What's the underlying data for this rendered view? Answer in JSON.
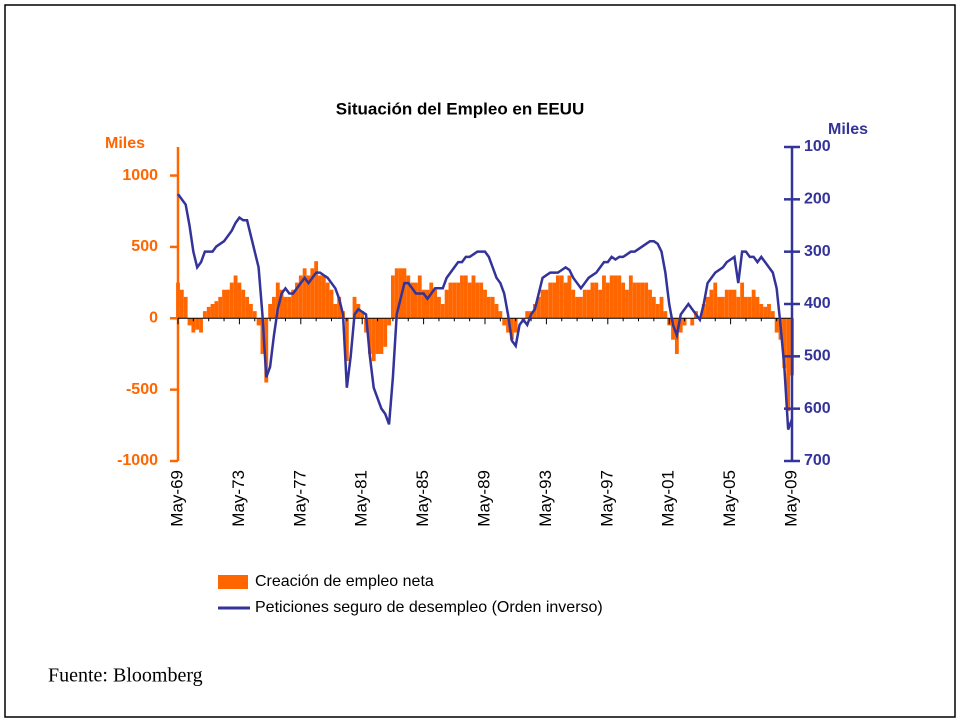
{
  "chart_data": {
    "type": "bar_line",
    "title": "Situación del Empleo en EEUU",
    "ylabel": "Miles",
    "y2label": "Miles",
    "source": "Fuente: Bloomberg",
    "categories": [
      "May-69",
      null,
      null,
      null,
      null,
      null,
      null,
      null,
      null,
      null,
      null,
      null,
      null,
      null,
      null,
      null,
      "May-73",
      null,
      null,
      null,
      null,
      null,
      null,
      null,
      null,
      null,
      null,
      null,
      null,
      null,
      null,
      null,
      "May-77",
      null,
      null,
      null,
      null,
      null,
      null,
      null,
      null,
      null,
      null,
      null,
      null,
      null,
      null,
      null,
      "May-81",
      null,
      null,
      null,
      null,
      null,
      null,
      null,
      null,
      null,
      null,
      null,
      null,
      null,
      null,
      null,
      "May-85",
      null,
      null,
      null,
      null,
      null,
      null,
      null,
      null,
      null,
      null,
      null,
      null,
      null,
      null,
      null,
      "May-89",
      null,
      null,
      null,
      null,
      null,
      null,
      null,
      null,
      null,
      null,
      null,
      null,
      null,
      null,
      null,
      "May-93",
      null,
      null,
      null,
      null,
      null,
      null,
      null,
      null,
      null,
      null,
      null,
      null,
      null,
      null,
      null,
      "May-97",
      null,
      null,
      null,
      null,
      null,
      null,
      null,
      null,
      null,
      null,
      null,
      null,
      null,
      null,
      null,
      "May-01",
      null,
      null,
      null,
      null,
      null,
      null,
      null,
      null,
      null,
      null,
      null,
      null,
      null,
      null,
      null,
      "May-05",
      null,
      null,
      null,
      null,
      null,
      null,
      null,
      null,
      null,
      null,
      null,
      null,
      null,
      null,
      null,
      "May-09"
    ],
    "series": [
      {
        "name": "Creación de empleo neta",
        "color": "#ff6600",
        "kind": "bar",
        "values": [
          250,
          200,
          150,
          -50,
          -100,
          -80,
          -100,
          50,
          80,
          100,
          120,
          150,
          200,
          200,
          250,
          300,
          250,
          200,
          150,
          100,
          50,
          -50,
          -250,
          -450,
          100,
          150,
          250,
          200,
          150,
          150,
          200,
          250,
          300,
          350,
          300,
          350,
          400,
          300,
          300,
          250,
          200,
          100,
          150,
          50,
          -300,
          0,
          150,
          100,
          50,
          -100,
          -250,
          -300,
          -250,
          -250,
          -200,
          -50,
          300,
          350,
          350,
          350,
          300,
          250,
          250,
          300,
          200,
          200,
          250,
          200,
          150,
          100,
          200,
          250,
          250,
          250,
          300,
          300,
          250,
          300,
          250,
          250,
          200,
          150,
          150,
          100,
          50,
          -50,
          -100,
          -150,
          -100,
          0,
          -30,
          50,
          50,
          100,
          150,
          200,
          200,
          250,
          250,
          300,
          300,
          250,
          300,
          200,
          150,
          150,
          200,
          200,
          250,
          250,
          200,
          300,
          250,
          300,
          300,
          300,
          250,
          200,
          300,
          250,
          250,
          250,
          250,
          200,
          150,
          100,
          150,
          50,
          -50,
          -150,
          -250,
          -100,
          -50,
          0,
          -50,
          50,
          0,
          100,
          150,
          200,
          250,
          150,
          150,
          200,
          200,
          200,
          150,
          250,
          150,
          150,
          200,
          150,
          100,
          80,
          100,
          50,
          -100,
          -150,
          -350,
          -650,
          -400
        ]
      },
      {
        "name": "Peticiones seguro de desempleo (Orden inverso)",
        "color": "#333399",
        "kind": "line",
        "axis": "y2",
        "values": [
          190,
          200,
          210,
          250,
          300,
          330,
          320,
          300,
          300,
          300,
          290,
          285,
          280,
          270,
          260,
          245,
          235,
          240,
          240,
          270,
          300,
          330,
          420,
          540,
          520,
          460,
          410,
          380,
          370,
          380,
          380,
          370,
          360,
          350,
          360,
          350,
          340,
          340,
          345,
          350,
          360,
          370,
          390,
          420,
          560,
          500,
          420,
          410,
          415,
          420,
          500,
          560,
          580,
          600,
          610,
          630,
          540,
          420,
          390,
          360,
          360,
          370,
          380,
          380,
          380,
          390,
          380,
          370,
          370,
          370,
          350,
          340,
          330,
          320,
          320,
          310,
          310,
          305,
          300,
          300,
          300,
          310,
          330,
          350,
          360,
          380,
          420,
          470,
          480,
          440,
          430,
          440,
          420,
          410,
          380,
          350,
          345,
          340,
          340,
          340,
          335,
          330,
          335,
          350,
          360,
          370,
          360,
          350,
          345,
          340,
          330,
          320,
          320,
          310,
          315,
          310,
          310,
          305,
          300,
          300,
          295,
          290,
          285,
          280,
          280,
          285,
          300,
          340,
          400,
          440,
          460,
          420,
          410,
          400,
          410,
          420,
          430,
          400,
          360,
          350,
          340,
          335,
          330,
          320,
          315,
          310,
          360,
          300,
          300,
          310,
          310,
          320,
          310,
          320,
          330,
          340,
          370,
          440,
          520,
          640,
          620
        ]
      }
    ],
    "ylim": [
      -1000,
      1200
    ],
    "yticks": [
      -1000,
      -500,
      0,
      500,
      1000
    ],
    "y2lim": [
      700,
      100
    ],
    "y2ticks": [
      100,
      200,
      300,
      400,
      500,
      600,
      700
    ]
  }
}
